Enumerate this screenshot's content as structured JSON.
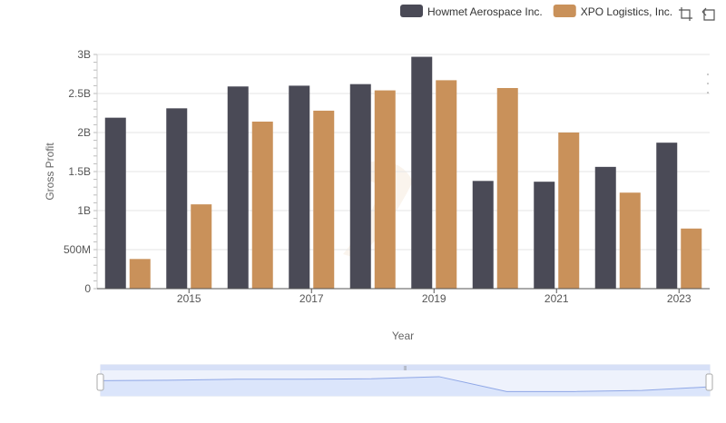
{
  "chart_data": {
    "type": "bar",
    "xlabel": "Year",
    "ylabel": "Gross Profit",
    "ylim": [
      0,
      3000000000
    ],
    "yticks": [
      {
        "value": 0,
        "label": "0"
      },
      {
        "value": 500000000,
        "label": "500M"
      },
      {
        "value": 1000000000,
        "label": "1B"
      },
      {
        "value": 1500000000,
        "label": "1.5B"
      },
      {
        "value": 2000000000,
        "label": "2B"
      },
      {
        "value": 2500000000,
        "label": "2.5B"
      },
      {
        "value": 3000000000,
        "label": "3B"
      }
    ],
    "categories": [
      "2014",
      "2015",
      "2016",
      "2017",
      "2018",
      "2019",
      "2020",
      "2021",
      "2022",
      "2023"
    ],
    "xtick_labels": [
      "2015",
      "2017",
      "2019",
      "2021",
      "2023"
    ],
    "grid": true,
    "legend_position": "top-right",
    "series": [
      {
        "name": "Howmet Aerospace Inc.",
        "color": "#4a4a56",
        "values": [
          2190000000,
          2310000000,
          2590000000,
          2600000000,
          2620000000,
          2970000000,
          1380000000,
          1370000000,
          1560000000,
          1870000000
        ]
      },
      {
        "name": "XPO Logistics, Inc.",
        "color": "#c9915a",
        "values": [
          380000000,
          1080000000,
          2140000000,
          2280000000,
          2540000000,
          2670000000,
          2570000000,
          2000000000,
          1230000000,
          770000000
        ]
      }
    ]
  },
  "toolbar": {
    "icons": [
      "crop-icon",
      "reset-icon",
      "menu-icon"
    ]
  },
  "navigator": {
    "series_values": [
      0.71,
      0.73,
      0.78,
      0.78,
      0.8,
      0.9,
      0.2,
      0.2,
      0.25,
      0.42
    ],
    "fill_color": "#dbe5fb",
    "line_color": "#8fa7e6"
  }
}
